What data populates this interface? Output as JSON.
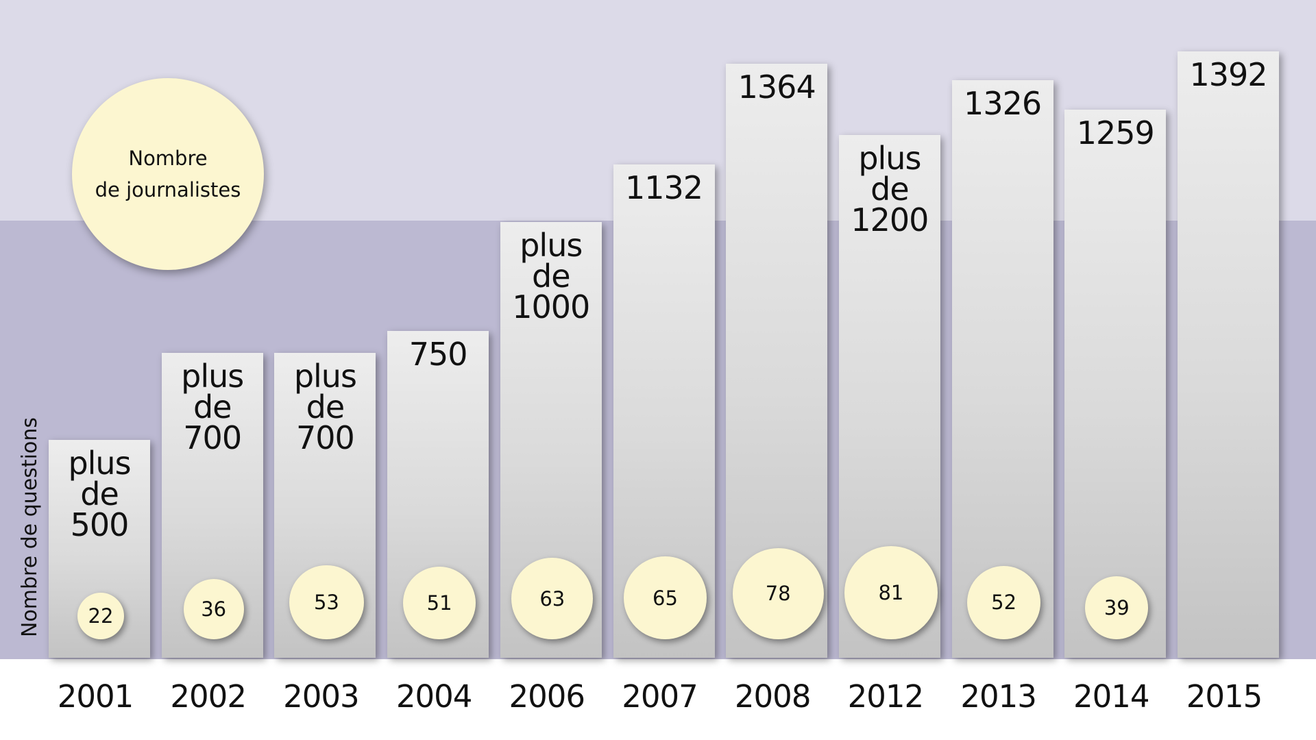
{
  "colors": {
    "band_top": "#dcdae8",
    "band_mid": "#bcb9d2",
    "bubble": "#fcf6d0",
    "bar": "#d6d6d6"
  },
  "legend": {
    "bubble_label": "Nombre\nde journalistes",
    "y_axis_label": "Nombre de questions"
  },
  "chart_data": {
    "type": "bar",
    "categories": [
      "2001",
      "2002",
      "2003",
      "2004",
      "2006",
      "2007",
      "2008",
      "2012",
      "2013",
      "2014",
      "2015"
    ],
    "series": [
      {
        "name": "Nombre de questions",
        "values": [
          500,
          700,
          700,
          750,
          1000,
          1132,
          1364,
          1200,
          1326,
          1259,
          1392
        ],
        "labels": [
          "plus\nde\n500",
          "plus\nde\n700",
          "plus\nde\n700",
          "750",
          "plus\nde\n1000",
          "1132",
          "1364",
          "plus\nde\n1200",
          "1326",
          "1259",
          "1392"
        ]
      },
      {
        "name": "Nombre de journalistes",
        "values": [
          22,
          36,
          53,
          51,
          63,
          65,
          78,
          81,
          52,
          39,
          null
        ],
        "labels": [
          "22",
          "36",
          "53",
          "51",
          "63",
          "65",
          "78",
          "81",
          "52",
          "39",
          ""
        ]
      }
    ],
    "ylim": [
      0,
      1392
    ]
  }
}
